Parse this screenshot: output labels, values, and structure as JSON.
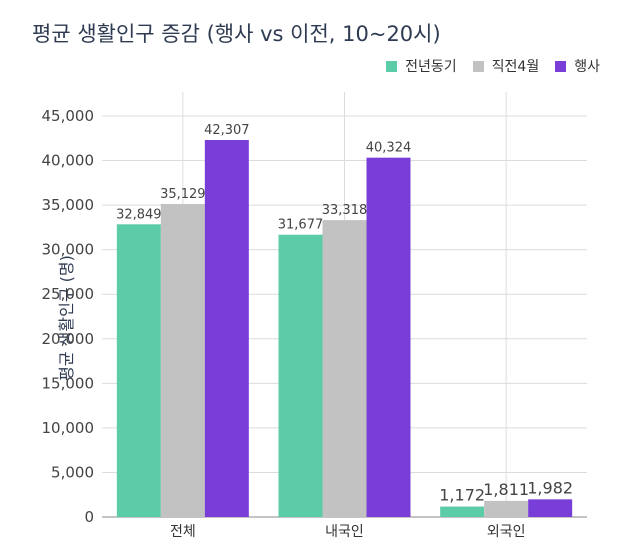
{
  "chart_data": {
    "type": "bar",
    "title": "평균 생활인구 증감 (행사 vs 이전, 10~20시)",
    "ylabel": "평균 생활인구 (명)",
    "xlabel": "",
    "categories": [
      "전체",
      "내국인",
      "외국인"
    ],
    "series": [
      {
        "name": "전년동기",
        "values": [
          32849,
          31677,
          1172
        ],
        "labels": [
          "32,849",
          "31,677",
          "1,172"
        ],
        "color": "#5ccba8"
      },
      {
        "name": "직전4월",
        "values": [
          35129,
          33318,
          1811
        ],
        "labels": [
          "35,129",
          "33,318",
          "1,811"
        ],
        "color": "#c2c2c2"
      },
      {
        "name": "행사",
        "values": [
          42307,
          40324,
          1982
        ],
        "labels": [
          "42,307",
          "40,324",
          "1,982"
        ],
        "color": "#7a3ed8"
      }
    ],
    "ylim": [
      0,
      45000
    ],
    "yticks": [
      0,
      5000,
      10000,
      15000,
      20000,
      25000,
      30000,
      35000,
      40000,
      45000
    ],
    "ytick_labels": [
      "0",
      "5,000",
      "10,000",
      "15,000",
      "20,000",
      "25,000",
      "30,000",
      "35,000",
      "40,000",
      "45,000"
    ],
    "legend_position": "top-right",
    "grid": true
  }
}
